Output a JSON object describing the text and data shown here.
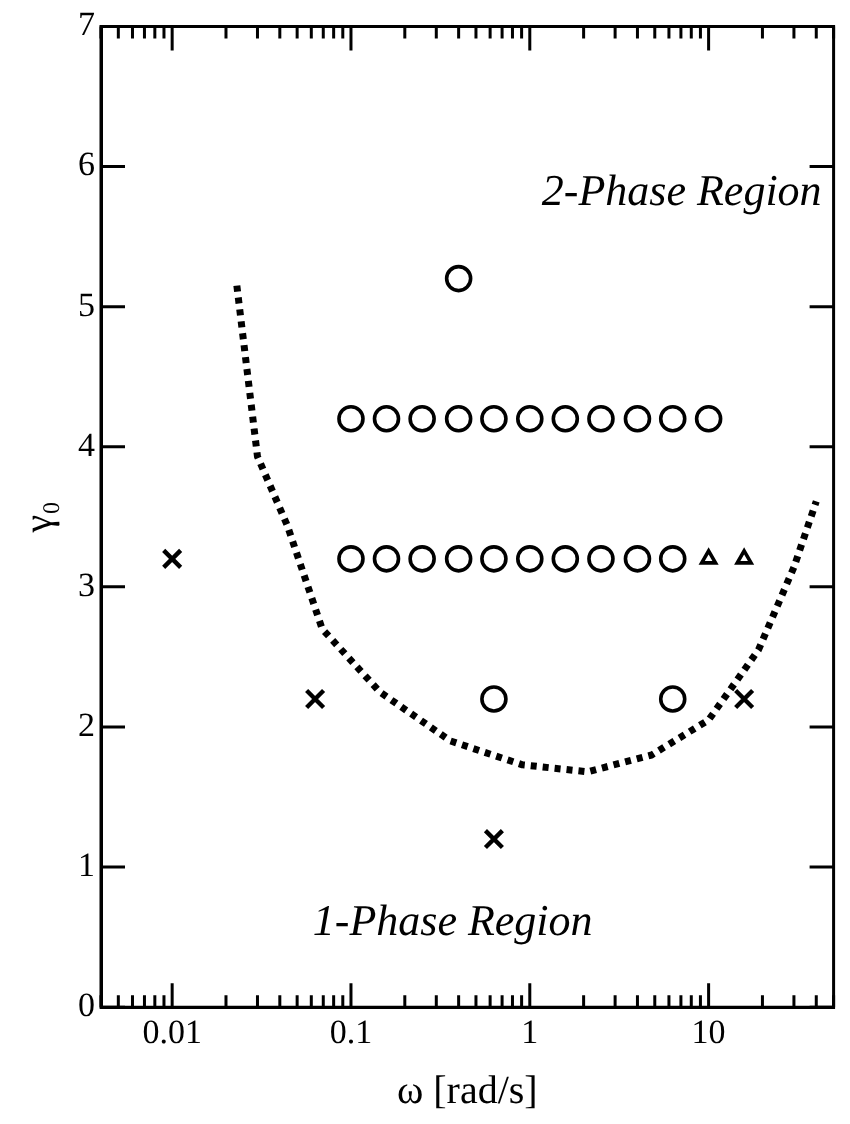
{
  "chart_data": {
    "type": "scatter",
    "xlabel": "ω [rad/s]",
    "ylabel": "γ₀",
    "annotations": [
      "2-Phase Region",
      "1-Phase Region"
    ],
    "log": "x",
    "xlim": [
      0.004,
      50
    ],
    "xticks": [
      {
        "value": 0.004,
        "label": null
      },
      {
        "value": 0.005,
        "label": null
      },
      {
        "value": 0.006,
        "label": null
      },
      {
        "value": 0.007,
        "label": null
      },
      {
        "value": 0.008,
        "label": null
      },
      {
        "value": 0.009,
        "label": null
      },
      0.01,
      {
        "value": 0.02,
        "label": null
      },
      {
        "value": 0.03,
        "label": null
      },
      {
        "value": 0.04,
        "label": null
      },
      {
        "value": 0.05,
        "label": null
      },
      {
        "value": 0.06,
        "label": null
      },
      {
        "value": 0.07,
        "label": null
      },
      {
        "value": 0.08,
        "label": null
      },
      {
        "value": 0.09,
        "label": null
      },
      0.1,
      {
        "value": 0.2,
        "label": null
      },
      {
        "value": 0.3,
        "label": null
      },
      {
        "value": 0.4,
        "label": null
      },
      {
        "value": 0.5,
        "label": null
      },
      {
        "value": 0.6,
        "label": null
      },
      {
        "value": 0.7,
        "label": null
      },
      {
        "value": 0.8,
        "label": null
      },
      {
        "value": 0.9,
        "label": null
      },
      1,
      {
        "value": 2,
        "label": null
      },
      {
        "value": 3,
        "label": null
      },
      {
        "value": 4,
        "label": null
      },
      {
        "value": 5,
        "label": null
      },
      {
        "value": 6,
        "label": null
      },
      {
        "value": 7,
        "label": null
      },
      {
        "value": 8,
        "label": null
      },
      {
        "value": 9,
        "label": null
      },
      10,
      {
        "value": 20,
        "label": null
      },
      {
        "value": 30,
        "label": null
      },
      {
        "value": 40,
        "label": null
      },
      {
        "value": 50,
        "label": null
      }
    ],
    "ylim": [
      0,
      7
    ],
    "yticks": [
      0,
      1,
      2,
      3,
      4,
      5,
      6,
      7
    ],
    "grid": false,
    "legend": false,
    "series": [
      {
        "marker": "circle",
        "color": "#000000",
        "x": [
          0.4,
          0.1,
          0.158,
          0.25,
          0.4,
          0.63,
          1,
          1.58,
          2.5,
          4,
          6.3,
          10,
          0.1,
          0.158,
          0.25,
          0.4,
          0.63,
          1,
          1.58,
          2.5,
          4,
          6.3,
          0.63,
          6.3
        ],
        "values": [
          5.2,
          4.2,
          4.2,
          4.2,
          4.2,
          4.2,
          4.2,
          4.2,
          4.2,
          4.2,
          4.2,
          4.2,
          3.2,
          3.2,
          3.2,
          3.2,
          3.2,
          3.2,
          3.2,
          3.2,
          3.2,
          3.2,
          2.2,
          2.2
        ]
      },
      {
        "marker": "triangle",
        "color": "#000000",
        "x": [
          10,
          15.8
        ],
        "values": [
          3.2,
          3.2
        ]
      },
      {
        "marker": "cross",
        "color": "#000000",
        "x": [
          0.01,
          0.063,
          0.63,
          15.8
        ],
        "values": [
          3.2,
          2.2,
          1.2,
          2.2
        ]
      },
      {
        "type": "line",
        "marker": "none",
        "line_style": "dotted",
        "color": "#000000",
        "x": [
          0.023,
          0.03,
          0.044,
          0.069,
          0.145,
          0.36,
          0.91,
          2.1,
          4.8,
          10,
          19,
          30,
          40
        ],
        "values": [
          5.15,
          3.93,
          3.44,
          2.7,
          2.25,
          1.9,
          1.73,
          1.68,
          1.8,
          2.05,
          2.55,
          3.14,
          3.61
        ]
      }
    ]
  }
}
